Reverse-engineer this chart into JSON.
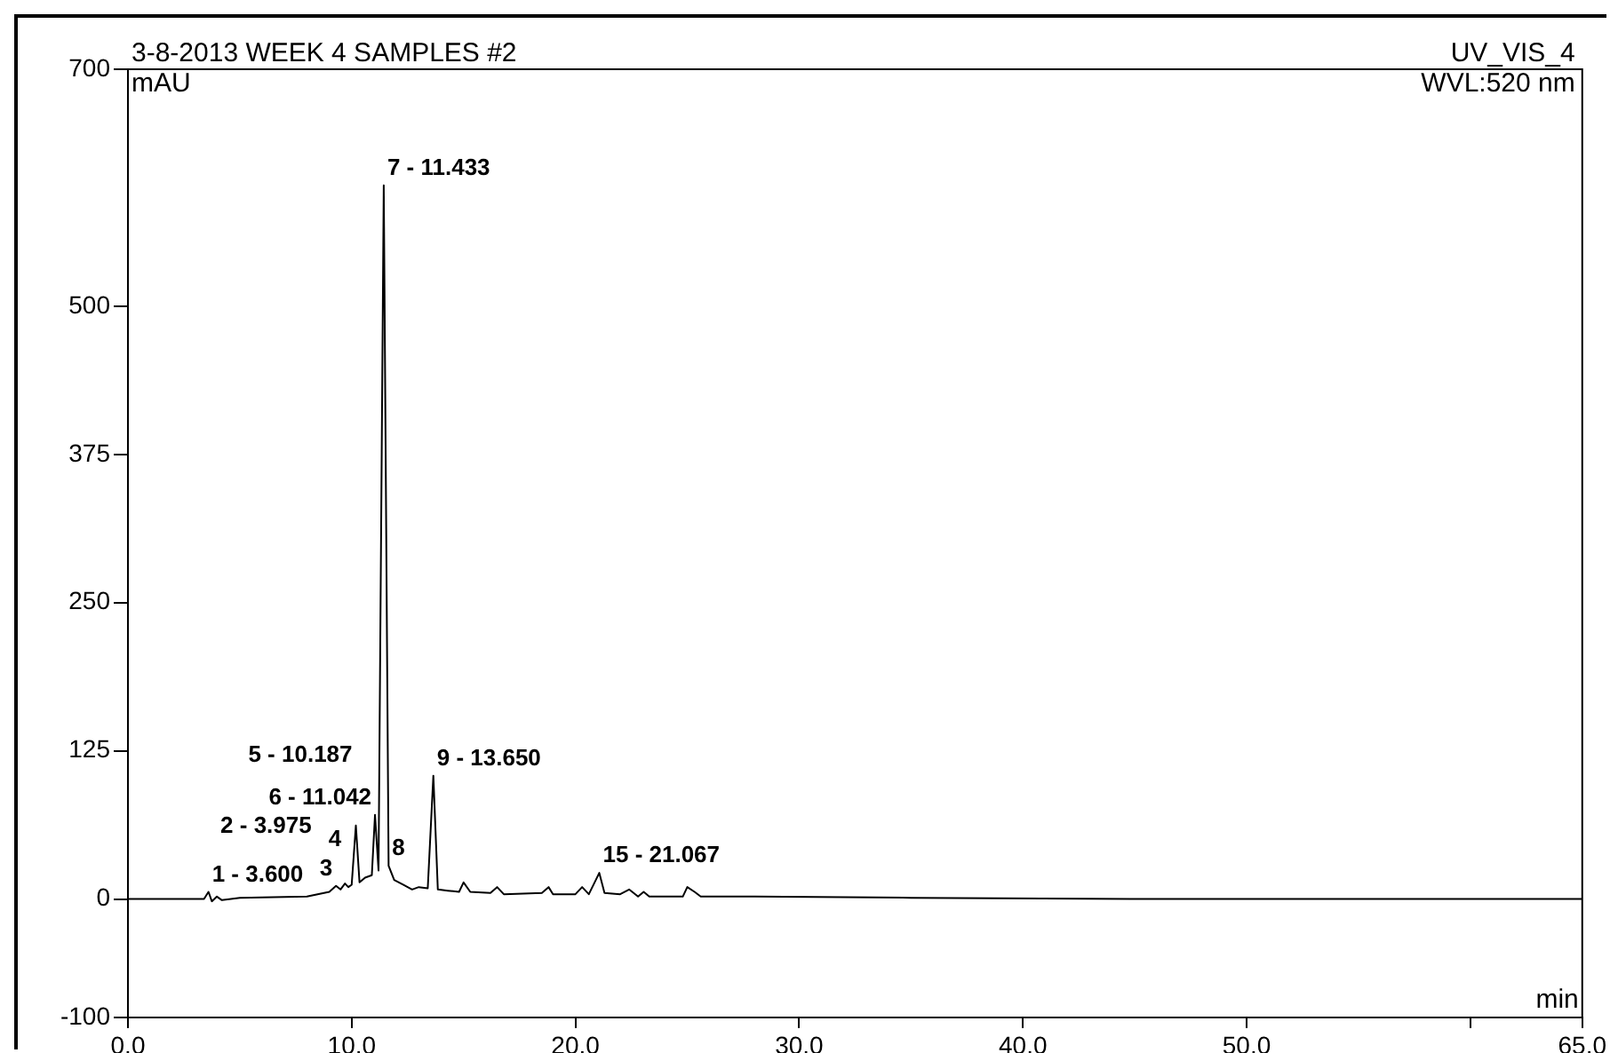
{
  "chart_data": {
    "type": "line",
    "title": "3-8-2013 WEEK 4 SAMPLES #2",
    "xlabel": "min",
    "ylabel": "mAU",
    "x": [
      0,
      3.4,
      3.6,
      3.75,
      3.975,
      4.2,
      5,
      8,
      9.0,
      9.3,
      9.5,
      9.7,
      9.85,
      10.0,
      10.187,
      10.35,
      10.6,
      10.9,
      11.042,
      11.2,
      11.433,
      11.65,
      11.9,
      12.3,
      12.7,
      13.0,
      13.4,
      13.65,
      13.85,
      14.3,
      14.8,
      15.0,
      15.3,
      16.2,
      16.5,
      16.8,
      18.5,
      18.8,
      19.0,
      20.0,
      20.3,
      20.6,
      21.067,
      21.3,
      22.0,
      22.4,
      22.8,
      23.05,
      23.3,
      24.8,
      25.0,
      25.325,
      25.6,
      28,
      35,
      45,
      55,
      65
    ],
    "series": [
      {
        "color": "#000000",
        "values": [
          0,
          0,
          6,
          -2,
          2,
          -1,
          1,
          2,
          6,
          11,
          8,
          13,
          10,
          12,
          62,
          14,
          18,
          20,
          71,
          24,
          602,
          28,
          16,
          12,
          8,
          10,
          9,
          104,
          8,
          7,
          6,
          14,
          6,
          5,
          10,
          4,
          5,
          10,
          4,
          4,
          10,
          4,
          22,
          5,
          4,
          8,
          2,
          6,
          2,
          2,
          10,
          6,
          2,
          2,
          1,
          0,
          0,
          0
        ]
      }
    ],
    "xlim": [
      0,
      65
    ],
    "xticks": [
      {
        "value": 0,
        "label": "0.0"
      },
      {
        "value": 10,
        "label": "10.0"
      },
      {
        "value": 20,
        "label": "20.0"
      },
      {
        "value": 30,
        "label": "30.0"
      },
      {
        "value": 40,
        "label": "40.0"
      },
      {
        "value": 50,
        "label": "50.0"
      },
      {
        "value": 60,
        "label": null
      },
      {
        "value": 65,
        "label": "65.0"
      }
    ],
    "ylim": [
      -100,
      700
    ],
    "yticks": [
      -100,
      0,
      125,
      250,
      375,
      500,
      700
    ],
    "grid": false,
    "legend": false,
    "annotations": [
      "UV_VIS_4",
      "WVL:520 nm",
      {
        "text": "7 - 11.433",
        "x": 11.433,
        "y": 602
      },
      {
        "text": "9 - 13.650",
        "x": 13.65,
        "y": 104
      },
      {
        "text": "6 - 11.042",
        "x": 11.042,
        "y": 71
      },
      {
        "text": "5 - 10.187",
        "x": 10.187,
        "y": 62
      },
      {
        "text": "1 - 3.600",
        "x": 3.6,
        "y": 6
      },
      {
        "text": "2 - 3.975",
        "x": 3.975,
        "y": 2
      },
      {
        "text": "3",
        "x": 9.3,
        "y": 11
      },
      {
        "text": "4",
        "x": 9.7,
        "y": 13
      },
      {
        "text": "8",
        "x": 11.65,
        "y": 28
      },
      {
        "text": "15 - 21.067",
        "x": 21.067,
        "y": 22
      }
    ]
  }
}
